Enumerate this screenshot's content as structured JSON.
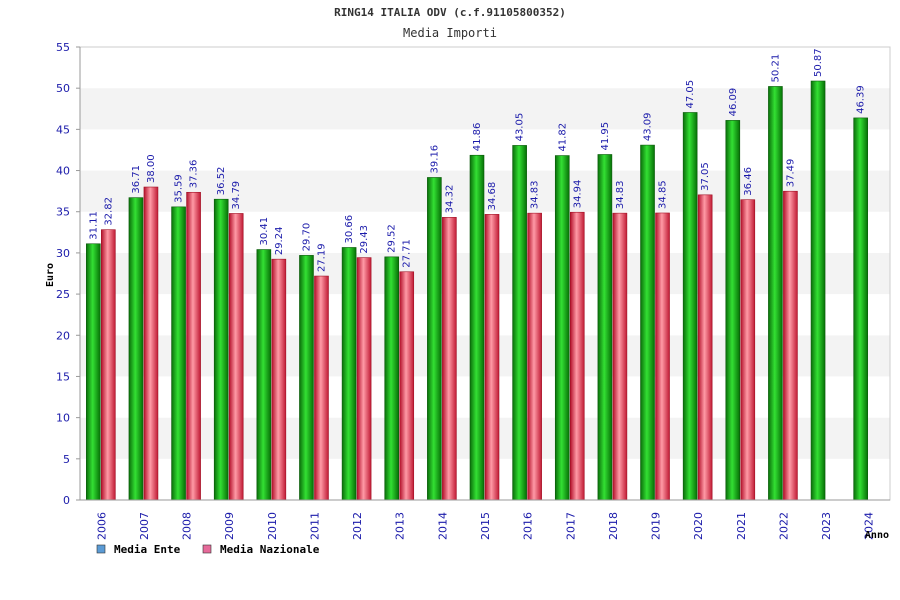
{
  "chart_data": {
    "type": "bar",
    "title": "RING14 ITALIA ODV (c.f.91105800352)",
    "subtitle": "Media Importi",
    "ylabel": "Euro",
    "xlabel": "Anno",
    "ylim": [
      0,
      55
    ],
    "yticks": [
      0,
      5,
      10,
      15,
      20,
      25,
      30,
      35,
      40,
      45,
      50,
      55
    ],
    "grid": true,
    "legend_position": "bottom-left",
    "categories": [
      "2006",
      "2007",
      "2008",
      "2009",
      "2010",
      "2011",
      "2012",
      "2013",
      "2014",
      "2015",
      "2016",
      "2017",
      "2018",
      "2019",
      "2020",
      "2021",
      "2022",
      "2023",
      "2024"
    ],
    "series": [
      {
        "name": "Media Ente",
        "color": "#1fae1f",
        "legend_color": "#5b9bd5",
        "values": [
          31.11,
          36.71,
          35.59,
          36.52,
          30.41,
          29.7,
          30.66,
          29.52,
          39.16,
          41.86,
          43.05,
          41.82,
          41.95,
          43.09,
          47.05,
          46.09,
          50.21,
          50.87,
          46.39
        ],
        "labels": [
          "31.11",
          "36.71",
          "35.59",
          "36.52",
          "30.41",
          "29.70",
          "30.66",
          "29.52",
          "39.16",
          "41.86",
          "43.05",
          "41.82",
          "41.95",
          "43.09",
          "47.05",
          "46.09",
          "50.21",
          "50.87",
          "46.39"
        ]
      },
      {
        "name": "Media Nazionale",
        "color": "#e8344a",
        "legend_color": "#e66a9a",
        "values": [
          32.82,
          38.0,
          37.36,
          34.79,
          29.24,
          27.19,
          29.43,
          27.71,
          34.32,
          34.68,
          34.83,
          34.94,
          34.83,
          34.85,
          37.05,
          36.46,
          37.49,
          null,
          null
        ],
        "labels": [
          "32.82",
          "38.00",
          "37.36",
          "34.79",
          "29.24",
          "27.19",
          "29.43",
          "27.71",
          "34.32",
          "34.68",
          "34.83",
          "34.94",
          "34.83",
          "34.85",
          "37.05",
          "36.46",
          "37.49",
          "",
          ""
        ]
      }
    ]
  }
}
